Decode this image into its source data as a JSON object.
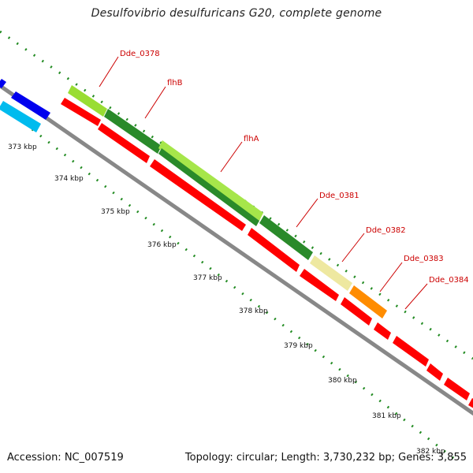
{
  "title": "Desulfovibrio desulfuricans G20, complete genome",
  "accession": "Accession: NC_007519",
  "summary": "Topology: circular; Length: 3,730,232 bp; Genes: 3,855",
  "kbp_labels": [
    "373 kbp",
    "374 kbp",
    "375 kbp",
    "376 kbp",
    "377 kbp",
    "378 kbp",
    "379 kbp",
    "380 kbp",
    "381 kbp",
    "382 kbp"
  ],
  "gene_labels": [
    "Dde_0378",
    "flhB",
    "flhA",
    "Dde_0381",
    "Dde_0382",
    "Dde_0383",
    "Dde_0384"
  ],
  "colors": {
    "backbone": "#888888",
    "cds_red": "#ff0000",
    "blue": "#0000ee",
    "cyan": "#00bbee",
    "lime": "#99dd33",
    "dark_green": "#2a8a2a",
    "pale_yellow": "#eee8a0",
    "orange": "#ff8c00",
    "dots_green": "#228b22",
    "label_red": "#cc0000"
  }
}
